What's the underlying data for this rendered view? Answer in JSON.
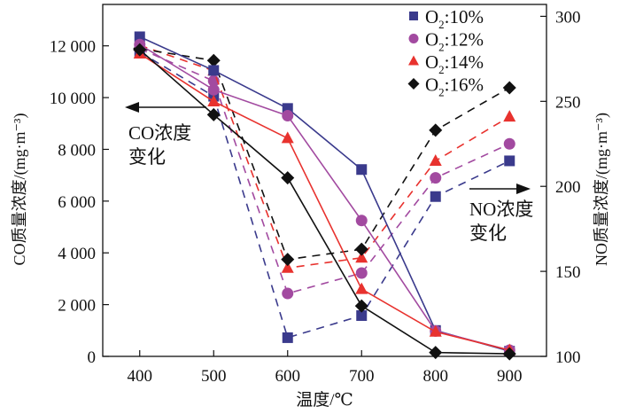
{
  "chart_data": {
    "type": "line",
    "title": "",
    "xlabel": "温度/℃",
    "ylabel_left": "CO质量浓度/(mg·m⁻³)",
    "ylabel_left_unit_sup": "-3",
    "ylabel_right": "NO质量浓度/(mg·m⁻³)",
    "x": [
      400,
      500,
      600,
      700,
      800,
      900
    ],
    "x_ticks": [
      "400",
      "500",
      "600",
      "700",
      "800",
      "900"
    ],
    "xlim": [
      350,
      950
    ],
    "ylim_left": [
      0,
      13600
    ],
    "ylim_right": [
      100,
      307
    ],
    "y_ticks_left": [
      {
        "value": 0,
        "label": "0"
      },
      {
        "value": 2000,
        "label": "2 000"
      },
      {
        "value": 4000,
        "label": "4 000"
      },
      {
        "value": 6000,
        "label": "6 000"
      },
      {
        "value": 8000,
        "label": "8 000"
      },
      {
        "value": 10000,
        "label": "10 000"
      },
      {
        "value": 12000,
        "label": "12 000"
      }
    ],
    "y_ticks_right": [
      {
        "value": 100,
        "label": "100"
      },
      {
        "value": 150,
        "label": "150"
      },
      {
        "value": 200,
        "label": "200"
      },
      {
        "value": 250,
        "label": "250"
      },
      {
        "value": 300,
        "label": "300"
      }
    ],
    "grid": false,
    "legend_position": "top-right",
    "legend": [
      {
        "label_main": "O",
        "label_sub": "2",
        "label_rest": ":10%",
        "marker": "square",
        "color": "#3a3a8c"
      },
      {
        "label_main": "O",
        "label_sub": "2",
        "label_rest": ":12%",
        "marker": "circle",
        "color": "#a24aa0"
      },
      {
        "label_main": "O",
        "label_sub": "2",
        "label_rest": ":14%",
        "marker": "triangle",
        "color": "#e8322e"
      },
      {
        "label_main": "O",
        "label_sub": "2",
        "label_rest": ":16%",
        "marker": "diamond",
        "color": "#111111"
      }
    ],
    "annotations": [
      {
        "text_line1": "CO浓度",
        "text_line2": "变化",
        "arrow": "left",
        "refers_to": "left-axis"
      },
      {
        "text_line1": "NO浓度",
        "text_line2": "变化",
        "arrow": "right",
        "refers_to": "right-axis"
      }
    ],
    "series": [
      {
        "name": "O2:10% CO",
        "axis": "left",
        "style": "solid",
        "marker": "square",
        "color": "#3a3a8c",
        "values": [
          12350,
          11050,
          9580,
          7220,
          1000,
          200
        ]
      },
      {
        "name": "O2:12% CO",
        "axis": "left",
        "style": "solid",
        "marker": "circle",
        "color": "#a24aa0",
        "values": [
          12050,
          10300,
          9300,
          5250,
          980,
          240
        ]
      },
      {
        "name": "O2:14% CO",
        "axis": "left",
        "style": "solid",
        "marker": "triangle",
        "color": "#e8322e",
        "values": [
          11700,
          9850,
          8430,
          2600,
          950,
          240
        ]
      },
      {
        "name": "O2:16% CO",
        "axis": "left",
        "style": "solid",
        "marker": "diamond",
        "color": "#111111",
        "values": [
          11850,
          9340,
          6900,
          1950,
          150,
          100
        ]
      },
      {
        "name": "O2:10% NO",
        "axis": "right",
        "style": "dashed",
        "marker": "square",
        "color": "#3a3a8c",
        "values": [
          279,
          253,
          111,
          124,
          194,
          215
        ]
      },
      {
        "name": "O2:12% NO",
        "axis": "right",
        "style": "dashed",
        "marker": "circle",
        "color": "#a24aa0",
        "values": [
          281,
          262,
          137,
          149,
          205,
          225
        ]
      },
      {
        "name": "O2:14% NO",
        "axis": "right",
        "style": "dashed",
        "marker": "triangle",
        "color": "#e8322e",
        "values": [
          283,
          268,
          152,
          158,
          215,
          241
        ]
      },
      {
        "name": "O2:16% NO",
        "axis": "right",
        "style": "dashed",
        "marker": "diamond",
        "color": "#111111",
        "values": [
          281,
          274,
          157,
          163,
          233,
          258
        ]
      }
    ]
  }
}
